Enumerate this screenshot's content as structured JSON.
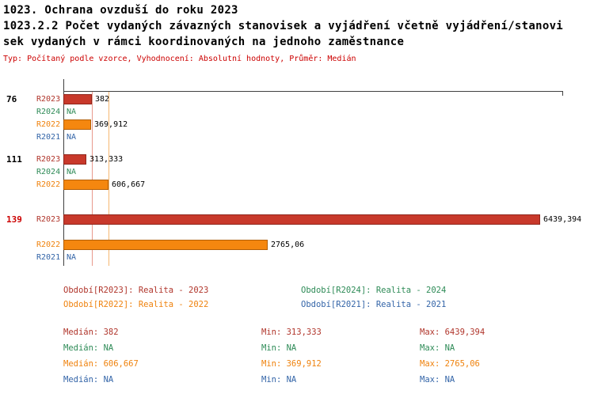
{
  "header": {
    "line1": "1023. Ochrana ovzduší do roku 2023",
    "line2": "1023.2.2 Počet vydaných závazných stanovisek a vyjádření včetně vyjádření/stanovi",
    "line3": "sek vydaných v rámci koordinovaných na jednoho zaměstnance",
    "subtitle": "Typ: Počítaný podle vzorce, Vyhodnocení: Absolutní hodnoty, Průměr: Medián",
    "subtitle_color": "#cc0000"
  },
  "colors": {
    "axis": "#404040",
    "group_label_default": "#000000",
    "group_label_highlight": "#cc0000"
  },
  "chart_data": {
    "type": "bar",
    "orientation": "horizontal",
    "title": "1023.2.2 Počet vydaných závazných stanovisek a vyjádření včetně vyjádření/stanovisek vydaných v rámci koordinovaných na jednoho zaměstnance",
    "value_axis_min": 0,
    "value_axis_max_shown_value": 6439.394,
    "series": {
      "R2023": {
        "label": "R2023",
        "text": "#b0352b",
        "fill": "#c8392b",
        "border": "#8f251b"
      },
      "R2024": {
        "label": "R2024",
        "text": "#2e8b57",
        "fill": "#2e8b57",
        "border": "#1f5e3b"
      },
      "R2022": {
        "label": "R2022",
        "text": "#ef820d",
        "fill": "#f5870f",
        "border": "#b35f07"
      },
      "R2021": {
        "label": "R2021",
        "text": "#3465a8",
        "fill": "#3465a8",
        "border": "#234472"
      }
    },
    "groups": [
      {
        "label": "76",
        "label_color": "#000000",
        "bars": [
          {
            "series": "R2023",
            "value": 382,
            "value_label": "382"
          },
          {
            "series": "R2024",
            "value": null,
            "value_label": "NA"
          },
          {
            "series": "R2022",
            "value": 369.912,
            "value_label": "369,912"
          },
          {
            "series": "R2021",
            "value": null,
            "value_label": "NA"
          }
        ]
      },
      {
        "label": "111",
        "label_color": "#000000",
        "bars": [
          {
            "series": "R2023",
            "value": 313.333,
            "value_label": "313,333"
          },
          {
            "series": "R2024",
            "value": null,
            "value_label": "NA"
          },
          {
            "series": "R2022",
            "value": 606.667,
            "value_label": "606,667"
          },
          {
            "series": "R2021",
            "value": null,
            "value_label": ""
          }
        ]
      },
      {
        "label": "139",
        "label_color": "#cc0000",
        "bars": [
          {
            "series": "R2023",
            "value": 6439.394,
            "value_label": "6439,394"
          },
          {
            "series": "R2024",
            "value": null,
            "value_label": ""
          },
          {
            "series": "R2022",
            "value": 2765.06,
            "value_label": "2765,06"
          },
          {
            "series": "R2021",
            "value": null,
            "value_label": "NA"
          }
        ]
      }
    ],
    "median_lines": [
      {
        "series": "R2023",
        "value": 382,
        "color": "#e89a8c"
      },
      {
        "series": "R2022",
        "value": 606.667,
        "color": "#f6b871"
      }
    ]
  },
  "legend": {
    "entries": [
      {
        "series": "R2023",
        "label": "Období[R2023]: Realita - 2023",
        "color": "#b0352b"
      },
      {
        "series": "R2024",
        "label": "Období[R2024]: Realita - 2024",
        "color": "#2e8b57"
      },
      {
        "series": "R2022",
        "label": "Období[R2022]: Realita - 2022",
        "color": "#ef820d"
      },
      {
        "series": "R2021",
        "label": "Období[R2021]: Realita - 2021",
        "color": "#3465a8"
      }
    ]
  },
  "stats": {
    "rows": [
      {
        "series": "R2023",
        "color": "#b0352b",
        "cells": [
          "Medián: 382",
          "Min: 313,333",
          "Max: 6439,394"
        ]
      },
      {
        "series": "R2024",
        "color": "#2e8b57",
        "cells": [
          "Medián: NA",
          "Min: NA",
          "Max: NA"
        ]
      },
      {
        "series": "R2022",
        "color": "#ef820d",
        "cells": [
          "Medián: 606,667",
          "Min: 369,912",
          "Max: 2765,06"
        ]
      },
      {
        "series": "R2021",
        "color": "#3465a8",
        "cells": [
          "Medián: NA",
          "Min: NA",
          "Max: NA"
        ]
      }
    ]
  }
}
